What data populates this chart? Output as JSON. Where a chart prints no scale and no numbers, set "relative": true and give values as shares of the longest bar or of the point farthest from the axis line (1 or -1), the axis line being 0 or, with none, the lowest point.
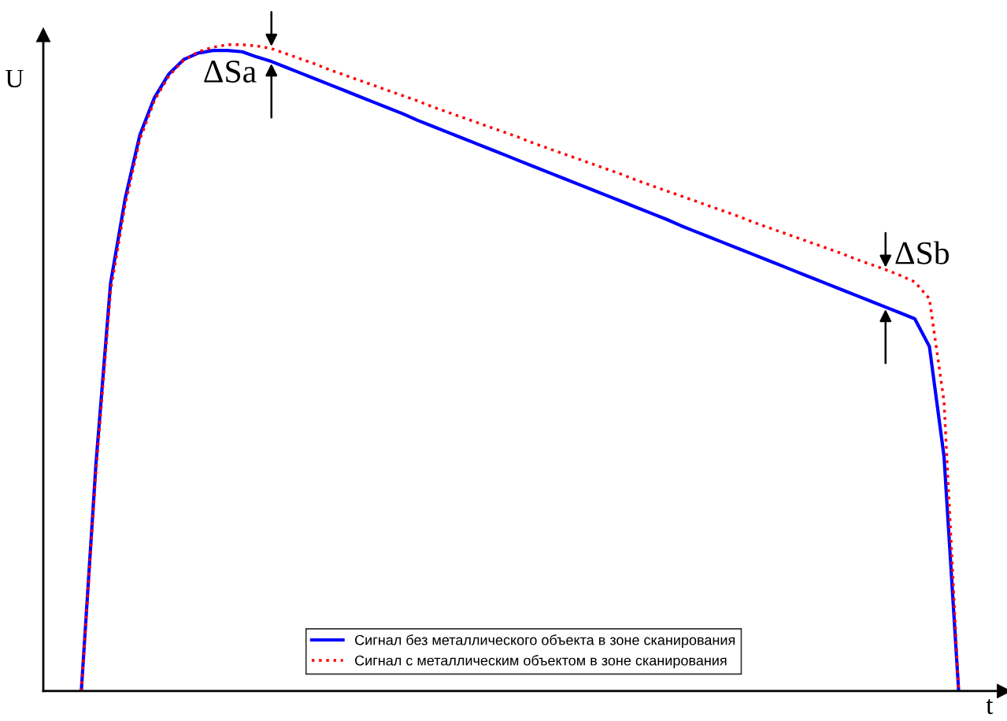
{
  "chart_data": {
    "type": "line",
    "relative": true,
    "xlabel": "t",
    "ylabel": "U",
    "categories": [
      null,
      null,
      null,
      null,
      null,
      null,
      null,
      null,
      null,
      null,
      null,
      null,
      null,
      null,
      null,
      null,
      null,
      null,
      null,
      null,
      null,
      null,
      null,
      null,
      null,
      null,
      null,
      null,
      null,
      null,
      null,
      null,
      null,
      null,
      null,
      null,
      null,
      null,
      null,
      null,
      null,
      null,
      null,
      null,
      null,
      null,
      null,
      null,
      null,
      null,
      null,
      null,
      null,
      null,
      null,
      null,
      null,
      null,
      null,
      null,
      null
    ],
    "series": [
      {
        "name": "Сигнал без металлического объекта в зоне сканирования",
        "color": "#0000ff",
        "line_style": "solid",
        "values": [
          0,
          0.351,
          0.631,
          0.762,
          0.86,
          0.918,
          0.955,
          0.977,
          0.987,
          0.991,
          0.991,
          0.989,
          0.981,
          0.974,
          0.965,
          0.956,
          0.947,
          0.938,
          0.929,
          0.92,
          0.911,
          0.902,
          0.893,
          0.883,
          0.874,
          0.865,
          0.856,
          0.847,
          0.838,
          0.829,
          0.82,
          0.811,
          0.802,
          0.793,
          0.784,
          0.775,
          0.766,
          0.757,
          0.748,
          0.739,
          0.73,
          0.72,
          0.711,
          0.702,
          0.693,
          0.684,
          0.675,
          0.666,
          0.657,
          0.648,
          0.639,
          0.63,
          0.621,
          0.612,
          0.603,
          0.594,
          0.585,
          0.576,
          0.533,
          0.363,
          0
        ]
      },
      {
        "name": "Сигнал с металлическим объектом в зоне сканирования",
        "color": "#ff0000",
        "line_style": "dotted",
        "values": [
          0,
          0.339,
          0.619,
          0.753,
          0.853,
          0.914,
          0.952,
          0.976,
          0.989,
          0.996,
          1.0,
          1.0,
          0.998,
          0.994,
          0.986,
          0.978,
          0.97,
          0.961,
          0.953,
          0.945,
          0.937,
          0.929,
          0.921,
          0.913,
          0.904,
          0.896,
          0.888,
          0.88,
          0.872,
          0.864,
          0.856,
          0.847,
          0.839,
          0.831,
          0.823,
          0.815,
          0.807,
          0.799,
          0.79,
          0.782,
          0.774,
          0.766,
          0.758,
          0.75,
          0.742,
          0.734,
          0.725,
          0.717,
          0.709,
          0.701,
          0.693,
          0.685,
          0.677,
          0.668,
          0.66,
          0.652,
          0.643,
          0.633,
          0.607,
          0.448,
          0
        ]
      }
    ],
    "annotations": [
      "ΔSa",
      "ΔSb"
    ],
    "legend": "bottom",
    "grid": false,
    "marker": "none"
  }
}
